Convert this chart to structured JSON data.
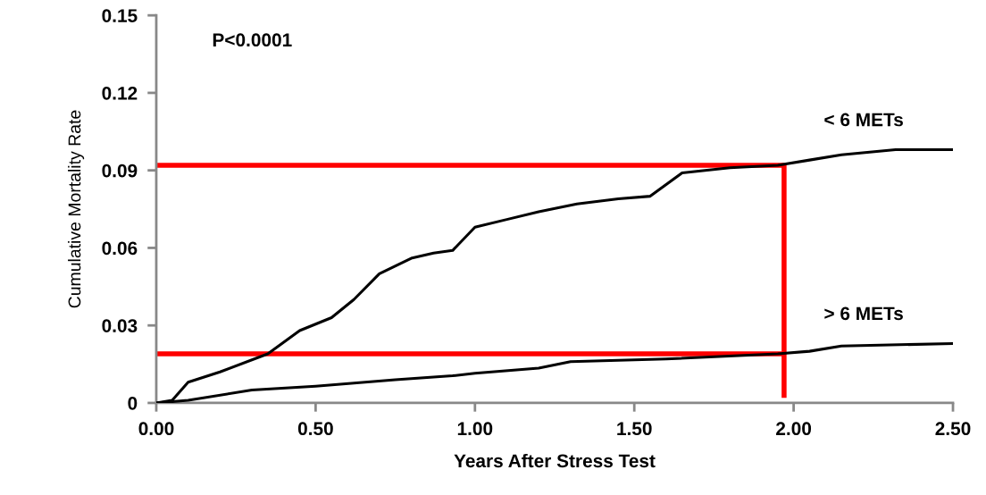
{
  "chart_data": {
    "type": "line",
    "xlabel": "Years After Stress Test",
    "ylabel": "Cumulative Mortality Rate",
    "annotations": [
      "P<0.0001"
    ],
    "xlim": [
      0,
      2.5
    ],
    "xticks": [
      {
        "value": 0,
        "label": "0.00"
      },
      {
        "value": 0.5,
        "label": "0.50"
      },
      {
        "value": 1,
        "label": "1.00"
      },
      {
        "value": 1.5,
        "label": "1.50"
      },
      {
        "value": 2,
        "label": "2.00"
      },
      {
        "value": 2.5,
        "label": "2.50"
      }
    ],
    "ylim": [
      0,
      0.15
    ],
    "yticks": [
      0,
      0.03,
      0.06,
      0.09,
      0.12,
      0.15
    ],
    "grid": false,
    "legend": false,
    "series": [
      {
        "name": "< 6 METs",
        "color": "#000000",
        "x": [
          0,
          0.05,
          0.1,
          0.2,
          0.35,
          0.45,
          0.55,
          0.62,
          0.7,
          0.8,
          0.87,
          0.93,
          1.0,
          1.1,
          1.2,
          1.32,
          1.45,
          1.55,
          1.65,
          1.8,
          1.95,
          2.05,
          2.15,
          2.32,
          2.5
        ],
        "values": [
          0,
          0.001,
          0.008,
          0.012,
          0.019,
          0.028,
          0.033,
          0.04,
          0.05,
          0.056,
          0.058,
          0.059,
          0.068,
          0.071,
          0.074,
          0.077,
          0.079,
          0.08,
          0.089,
          0.091,
          0.092,
          0.094,
          0.096,
          0.098,
          0.098
        ]
      },
      {
        "name": "> 6 METs",
        "color": "#000000",
        "x": [
          0,
          0.1,
          0.3,
          0.5,
          0.75,
          0.93,
          1.0,
          1.2,
          1.3,
          1.6,
          1.95,
          2.05,
          2.15,
          2.5
        ],
        "values": [
          0,
          0.001,
          0.005,
          0.0065,
          0.009,
          0.0105,
          0.0115,
          0.0135,
          0.016,
          0.017,
          0.019,
          0.02,
          0.022,
          0.023
        ]
      },
      {
        "color": "#ff0000",
        "x": [
          0,
          1.97
        ],
        "values": [
          0.092,
          0.092
        ]
      },
      {
        "color": "#ff0000",
        "x": [
          0,
          1.97
        ],
        "values": [
          0.019,
          0.019
        ]
      },
      {
        "color": "#ff0000",
        "x": [
          1.97,
          1.97
        ],
        "values": [
          0.002,
          0.092
        ]
      }
    ]
  }
}
